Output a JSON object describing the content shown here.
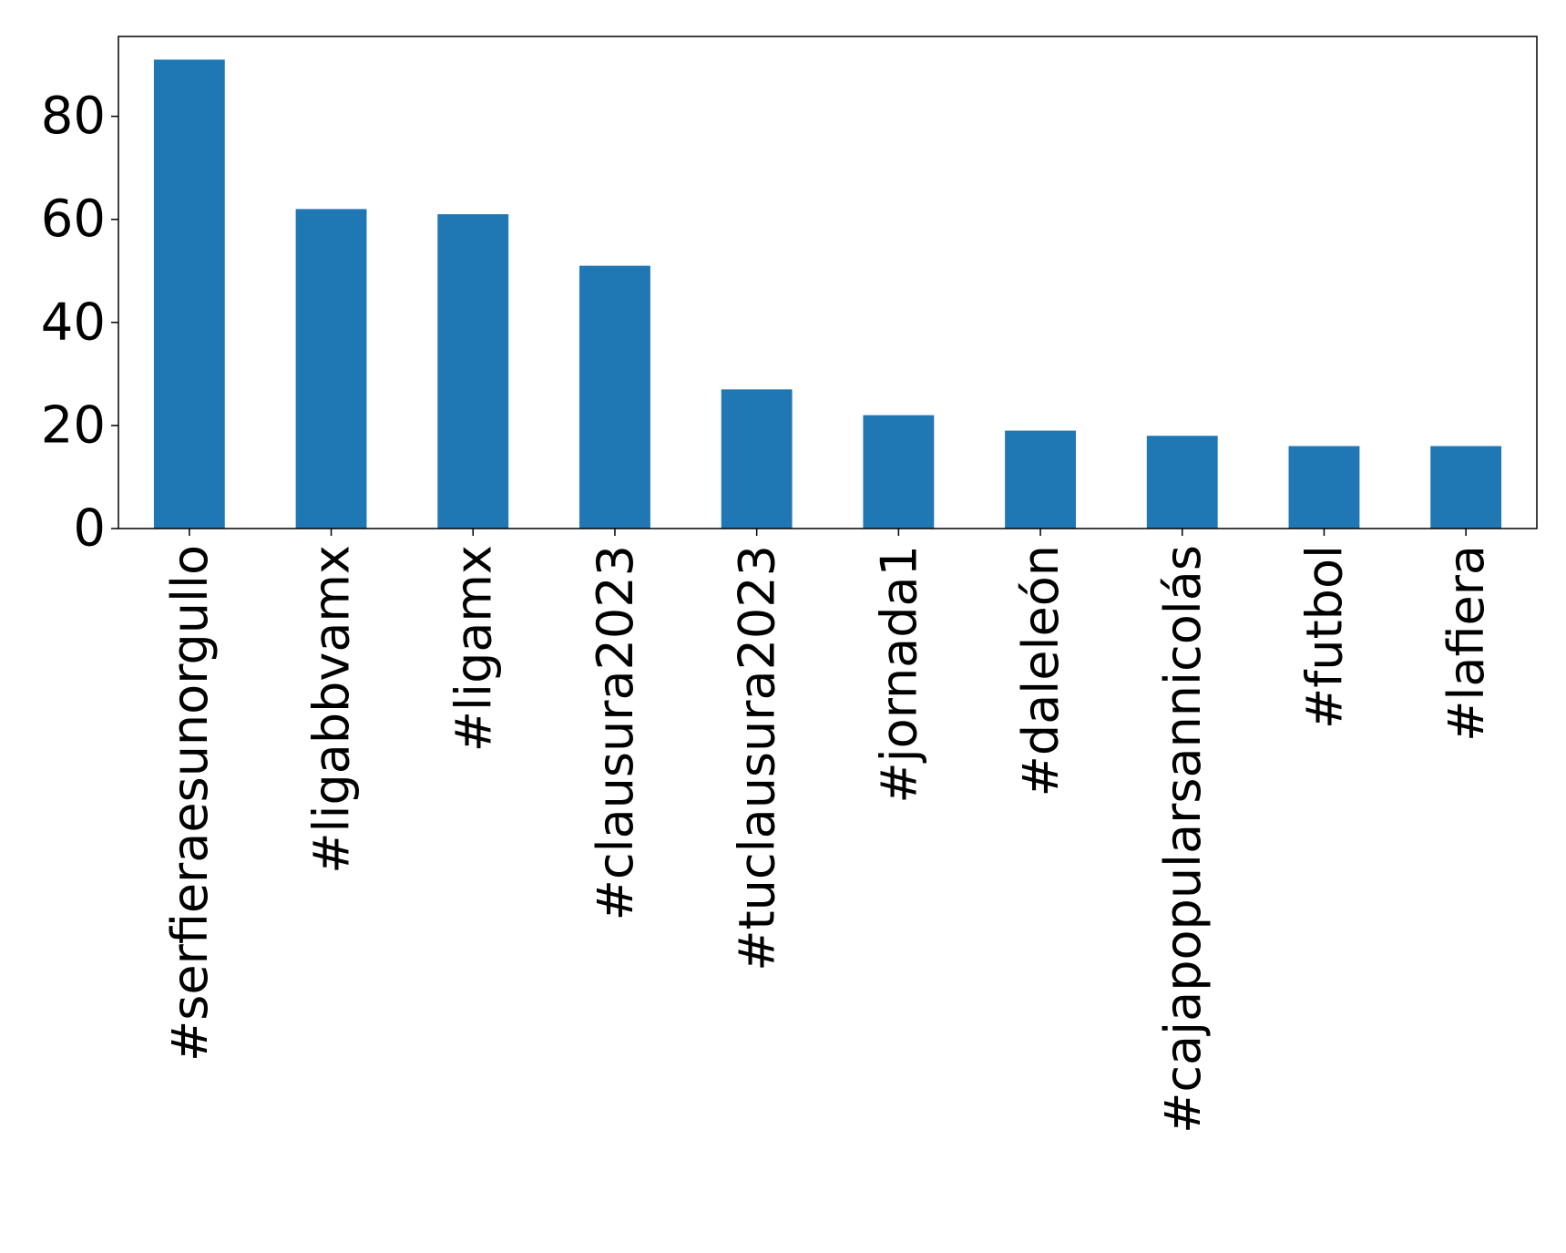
{
  "chart_data": {
    "type": "bar",
    "title": "",
    "xlabel": "",
    "ylabel": "",
    "categories": [
      "#serfieraesunorgullo",
      "#ligabbvamx",
      "#ligamx",
      "#clausura2023",
      "#tuclausura2023",
      "#jornada1",
      "#daleleón",
      "#cajapopularsannicolás",
      "#futbol",
      "#lafiera"
    ],
    "values": [
      91,
      62,
      61,
      51,
      27,
      22,
      19,
      18,
      16,
      16
    ],
    "ylim": [
      0,
      95.5
    ],
    "yticks": [
      0,
      20,
      40,
      60,
      80
    ],
    "ytick_labels": [
      "0",
      "20",
      "40",
      "60",
      "80"
    ],
    "bar_color": "#1f77b4",
    "grid": false,
    "legend": "none"
  }
}
